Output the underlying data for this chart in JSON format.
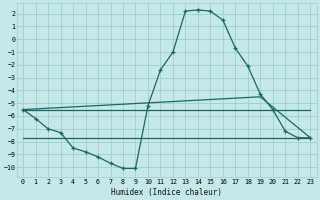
{
  "xlabel": "Humidex (Indice chaleur)",
  "xlim": [
    -0.5,
    23.5
  ],
  "ylim": [
    -10.8,
    2.8
  ],
  "yticks": [
    2,
    1,
    0,
    -1,
    -2,
    -3,
    -4,
    -5,
    -6,
    -7,
    -8,
    -9,
    -10
  ],
  "xticks": [
    0,
    1,
    2,
    3,
    4,
    5,
    6,
    7,
    8,
    9,
    10,
    11,
    12,
    13,
    14,
    15,
    16,
    17,
    18,
    19,
    20,
    21,
    22,
    23
  ],
  "bg_color": "#c5e8e8",
  "grid_color": "#9ecece",
  "line_color": "#1a6666",
  "curve_x": [
    0,
    1,
    2,
    3,
    4,
    5,
    6,
    7,
    8,
    9,
    10,
    11,
    12,
    13,
    14,
    15,
    16,
    17,
    18,
    19,
    20,
    21,
    22,
    23
  ],
  "curve_y": [
    -5.5,
    -6.2,
    -7.0,
    -7.3,
    -8.5,
    -8.8,
    -9.2,
    -9.7,
    -10.1,
    -10.1,
    -5.2,
    -2.4,
    -1.0,
    2.2,
    2.3,
    2.2,
    1.5,
    -0.7,
    -2.1,
    -4.3,
    -5.5,
    -7.2,
    -7.7,
    -7.7
  ],
  "line2_x": [
    0,
    23
  ],
  "line2_y": [
    -5.5,
    -5.5
  ],
  "line3_x": [
    0,
    19,
    23
  ],
  "line3_y": [
    -5.5,
    -4.5,
    -7.7
  ],
  "line4_x": [
    0,
    3,
    23
  ],
  "line4_y": [
    -7.7,
    -7.7,
    -7.7
  ]
}
